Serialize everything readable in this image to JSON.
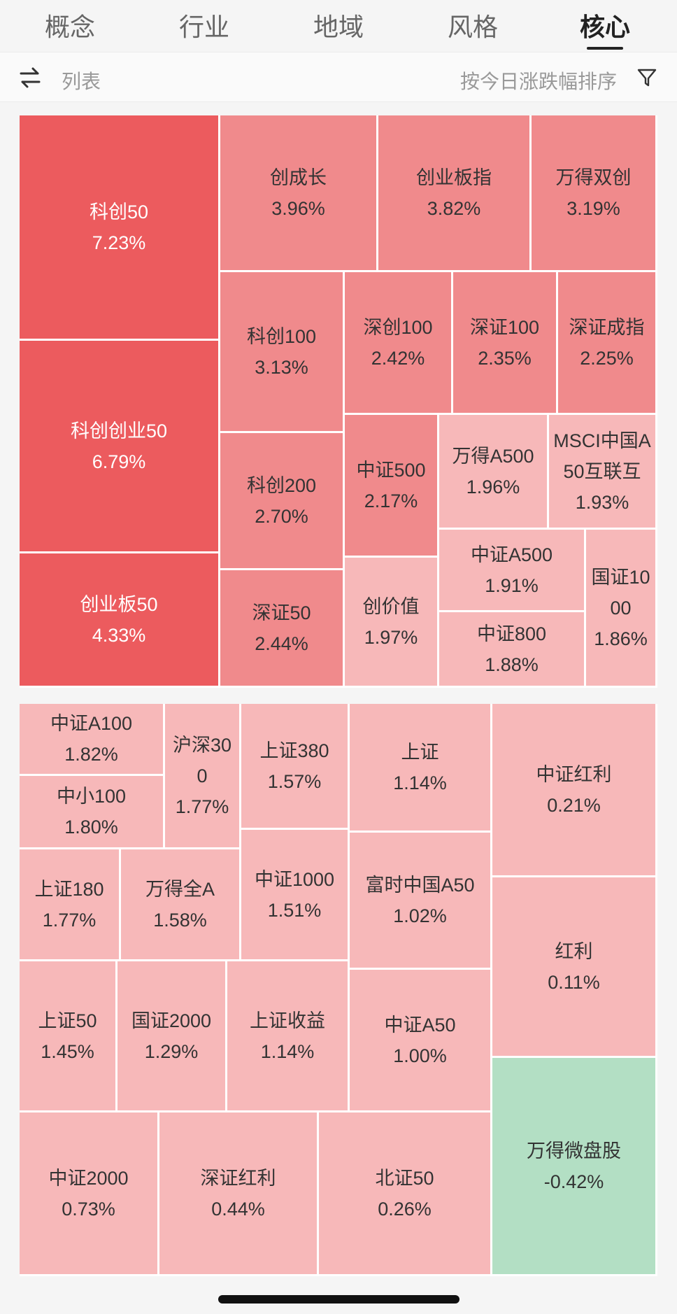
{
  "tabs": [
    {
      "label": "概念",
      "active": false
    },
    {
      "label": "行业",
      "active": false
    },
    {
      "label": "地域",
      "active": false
    },
    {
      "label": "风格",
      "active": false
    },
    {
      "label": "核心",
      "active": true
    }
  ],
  "toolbar": {
    "list_label": "列表",
    "sort_label": "按今日涨跌幅排序",
    "icons": [
      "swap-icon",
      "filter-icon"
    ]
  },
  "colors": {
    "strong_up": "#ec5b5e",
    "medium_up": "#f08a8c",
    "light_up": "#f7b8b9",
    "down": "#b3dfc4"
  },
  "treemap1": [
    {
      "name": "科创50",
      "pct": "7.23%"
    },
    {
      "name": "科创创业50",
      "pct": "6.79%"
    },
    {
      "name": "创业板50",
      "pct": "4.33%"
    },
    {
      "name": "创成长",
      "pct": "3.96%"
    },
    {
      "name": "创业板指",
      "pct": "3.82%"
    },
    {
      "name": "万得双创",
      "pct": "3.19%"
    },
    {
      "name": "科创100",
      "pct": "3.13%"
    },
    {
      "name": "深创100",
      "pct": "2.42%"
    },
    {
      "name": "深证100",
      "pct": "2.35%"
    },
    {
      "name": "深证成指",
      "pct": "2.25%"
    },
    {
      "name": "科创200",
      "pct": "2.70%"
    },
    {
      "name": "中证500",
      "pct": "2.17%"
    },
    {
      "name": "万得A500",
      "pct": "1.96%"
    },
    {
      "name": "MSCI中国A50互联互",
      "pct": "1.93%"
    },
    {
      "name": "中证A500",
      "pct": "1.91%"
    },
    {
      "name": "国证1000",
      "pct": "1.86%"
    },
    {
      "name": "深证50",
      "pct": "2.44%"
    },
    {
      "name": "创价值",
      "pct": "1.97%"
    },
    {
      "name": "中证800",
      "pct": "1.88%"
    }
  ],
  "treemap2": [
    {
      "name": "中证A100",
      "pct": "1.82%"
    },
    {
      "name": "中小100",
      "pct": "1.80%"
    },
    {
      "name": "沪深300",
      "pct": "1.77%"
    },
    {
      "name": "上证380",
      "pct": "1.57%"
    },
    {
      "name": "上证",
      "pct": "1.14%"
    },
    {
      "name": "中证红利",
      "pct": "0.21%"
    },
    {
      "name": "上证180",
      "pct": "1.77%"
    },
    {
      "name": "万得全A",
      "pct": "1.58%"
    },
    {
      "name": "中证1000",
      "pct": "1.51%"
    },
    {
      "name": "富时中国A50",
      "pct": "1.02%"
    },
    {
      "name": "红利",
      "pct": "0.11%"
    },
    {
      "name": "上证50",
      "pct": "1.45%"
    },
    {
      "name": "国证2000",
      "pct": "1.29%"
    },
    {
      "name": "上证收益",
      "pct": "1.14%"
    },
    {
      "name": "中证A50",
      "pct": "1.00%"
    },
    {
      "name": "万得微盘股",
      "pct": "-0.42%"
    },
    {
      "name": "中证2000",
      "pct": "0.73%"
    },
    {
      "name": "深证红利",
      "pct": "0.44%"
    },
    {
      "name": "北证50",
      "pct": "0.26%"
    }
  ]
}
